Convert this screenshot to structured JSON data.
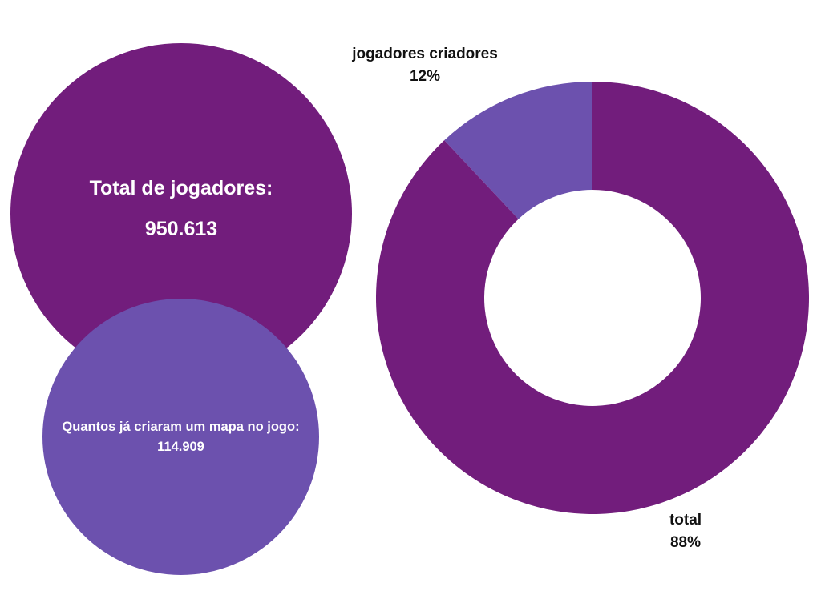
{
  "bubbles": {
    "total_players": {
      "label": "Total de jogadores:",
      "value": "950.613",
      "color": "#721d7c"
    },
    "map_creators": {
      "label": "Quantos já criaram um mapa no jogo:",
      "value": "114.909",
      "color": "#6c51ae"
    }
  },
  "chart_data": {
    "type": "pie",
    "donut": true,
    "title": "",
    "slices": [
      {
        "name": "jogadores criadores",
        "value": 12,
        "label": "12%",
        "color": "#6c51ae"
      },
      {
        "name": "total",
        "value": 88,
        "label": "88%",
        "color": "#721d7c"
      }
    ],
    "start": "12 o'clock",
    "direction": "counter-clockwise",
    "legend": "none"
  }
}
